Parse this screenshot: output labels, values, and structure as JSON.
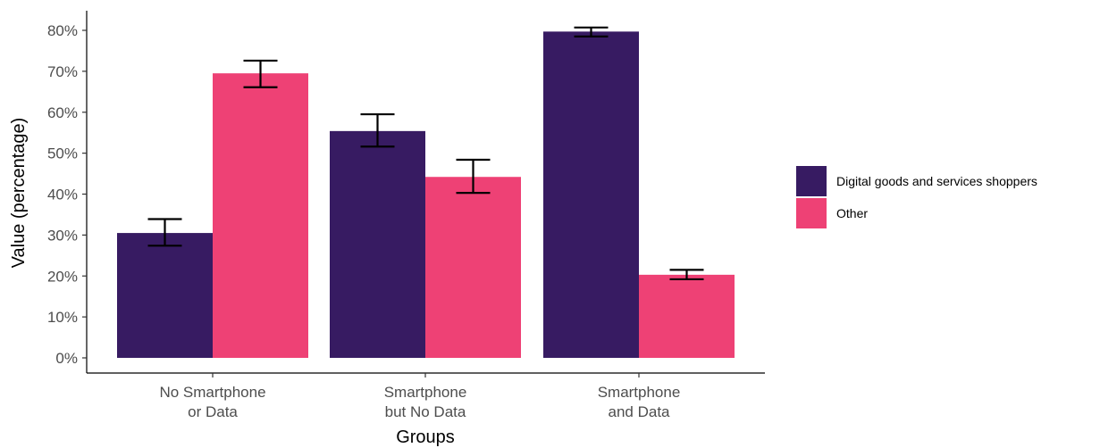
{
  "chart_data": {
    "type": "bar",
    "xlabel": "Groups",
    "ylabel": "Value (percentage)",
    "ylim": [
      0,
      0.82
    ],
    "yticks": [
      "0%",
      "10%",
      "20%",
      "30%",
      "40%",
      "50%",
      "60%",
      "70%",
      "80%"
    ],
    "categories": [
      [
        "No Smartphone",
        "or Data"
      ],
      [
        "Smartphone",
        "but No Data"
      ],
      [
        "Smartphone",
        "and Data"
      ]
    ],
    "series": [
      {
        "name": "Digital goods and services shoppers",
        "color": "#371b62",
        "values": [
          0.305,
          0.554,
          0.797
        ],
        "error_low": [
          0.274,
          0.516,
          0.785
        ],
        "error_high": [
          0.339,
          0.595,
          0.807
        ]
      },
      {
        "name": "Other",
        "color": "#ee4175",
        "values": [
          0.695,
          0.442,
          0.203
        ],
        "error_low": [
          0.661,
          0.403,
          0.192
        ],
        "error_high": [
          0.726,
          0.484,
          0.215
        ]
      }
    ],
    "grid": false,
    "legend_position": "right"
  }
}
